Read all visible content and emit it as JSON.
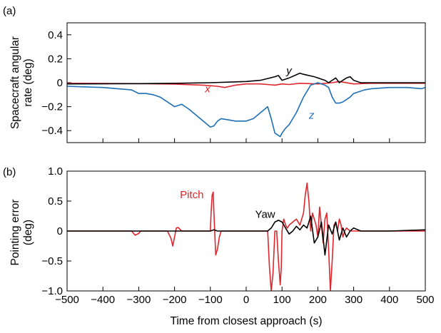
{
  "figure": {
    "x_axis_label": "Time from closest approach (s)"
  },
  "chart_data": [
    {
      "panel_label": "(a)",
      "type": "line",
      "ylabel": "Spacecraft angular rate (deg)",
      "ylabel_lines": [
        "Spacecraft angular",
        "rate (deg)"
      ],
      "xlim": [
        -500,
        500
      ],
      "ylim": [
        -0.5,
        0.5
      ],
      "yticks": [
        "0.4",
        "0.2",
        "0",
        "−0.2",
        "−0.4"
      ],
      "ytick_values": [
        0.4,
        0.2,
        0,
        -0.2,
        -0.4
      ],
      "grid": false,
      "series": [
        {
          "name": "x",
          "color": "#e0262c",
          "italic": true,
          "x": [
            -500,
            -300,
            -200,
            -120,
            -80,
            -60,
            -30,
            0,
            40,
            80,
            100,
            120,
            150,
            200,
            240,
            260,
            300,
            350,
            400,
            500
          ],
          "y": [
            -0.005,
            -0.008,
            -0.012,
            -0.02,
            -0.03,
            -0.04,
            -0.02,
            -0.01,
            -0.01,
            -0.02,
            -0.01,
            -0.015,
            -0.005,
            -0.01,
            0.0,
            0.01,
            -0.01,
            -0.005,
            -0.005,
            -0.005
          ]
        },
        {
          "name": "y",
          "color": "#000000",
          "italic": true,
          "x": [
            -500,
            -300,
            -200,
            -100,
            0,
            40,
            80,
            90,
            100,
            120,
            150,
            160,
            190,
            200,
            210,
            220,
            230,
            240,
            250,
            260,
            270,
            280,
            290,
            300,
            320,
            350,
            500
          ],
          "y": [
            -0.01,
            -0.008,
            -0.005,
            0.0,
            0.01,
            0.02,
            0.05,
            0.06,
            0.02,
            0.04,
            0.08,
            0.07,
            0.05,
            0.04,
            0.03,
            0.02,
            0.0,
            0.02,
            0.04,
            0.0,
            0.02,
            0.04,
            0.05,
            0.02,
            0.0,
            0.0,
            0.0
          ]
        },
        {
          "name": "z",
          "color": "#1f6fb5",
          "italic": true,
          "x": [
            -500,
            -400,
            -320,
            -300,
            -280,
            -260,
            -240,
            -220,
            -200,
            -180,
            -160,
            -140,
            -120,
            -100,
            -90,
            -80,
            -70,
            -50,
            -30,
            0,
            20,
            40,
            60,
            70,
            80,
            90,
            95,
            100,
            110,
            120,
            140,
            160,
            180,
            200,
            220,
            230,
            240,
            250,
            260,
            270,
            290,
            300,
            330,
            350,
            400,
            450,
            490,
            500
          ],
          "y": [
            -0.03,
            -0.04,
            -0.06,
            -0.09,
            -0.09,
            -0.1,
            -0.12,
            -0.16,
            -0.2,
            -0.18,
            -0.22,
            -0.27,
            -0.32,
            -0.37,
            -0.36,
            -0.32,
            -0.3,
            -0.31,
            -0.32,
            -0.32,
            -0.3,
            -0.25,
            -0.2,
            -0.3,
            -0.42,
            -0.44,
            -0.45,
            -0.42,
            -0.38,
            -0.35,
            -0.25,
            -0.12,
            -0.02,
            0.0,
            -0.02,
            -0.04,
            -0.12,
            -0.17,
            -0.17,
            -0.16,
            -0.12,
            -0.09,
            -0.06,
            -0.05,
            -0.04,
            -0.04,
            -0.05,
            -0.04
          ]
        }
      ],
      "labels": [
        {
          "text": "y",
          "x": 112,
          "y": 0.07
        },
        {
          "text": "x",
          "x": -115,
          "y": -0.08
        },
        {
          "text": "z",
          "x": 175,
          "y": -0.3
        }
      ]
    },
    {
      "panel_label": "(b)",
      "type": "line",
      "ylabel": "Pointing error (deg)",
      "ylabel_lines": [
        "Pointing error",
        "(deg)"
      ],
      "xlim": [
        -500,
        500
      ],
      "ylim": [
        -1.0,
        1.0
      ],
      "xticks": [
        "−500",
        "−400",
        "−300",
        "−200",
        "−100",
        "0",
        "100",
        "200",
        "300",
        "400",
        "500"
      ],
      "xtick_values": [
        -500,
        -400,
        -300,
        -200,
        -100,
        0,
        100,
        200,
        300,
        400,
        500
      ],
      "yticks": [
        "1.0",
        "0.5",
        "0",
        "−0.5",
        "−1.0"
      ],
      "ytick_values": [
        1.0,
        0.5,
        0,
        -0.5,
        -1.0
      ],
      "grid": false,
      "series": [
        {
          "name": "Pitch",
          "color": "#e0262c",
          "italic": false,
          "x": [
            -500,
            -320,
            -310,
            -300,
            -295,
            -290,
            -220,
            -210,
            -205,
            -200,
            -195,
            -190,
            -180,
            -170,
            -110,
            -100,
            -98,
            -95,
            -92,
            -90,
            -85,
            -80,
            -75,
            -70,
            -60,
            0,
            60,
            65,
            70,
            75,
            80,
            85,
            90,
            95,
            98,
            100,
            105,
            110,
            115,
            120,
            130,
            140,
            150,
            160,
            165,
            170,
            175,
            180,
            185,
            190,
            195,
            200,
            205,
            210,
            215,
            220,
            225,
            230,
            235,
            240,
            245,
            250,
            255,
            260,
            265,
            270,
            275,
            280,
            290,
            300,
            320,
            340,
            500
          ],
          "y": [
            0.0,
            0.0,
            -0.07,
            -0.04,
            0.0,
            0.0,
            0.0,
            -0.12,
            -0.25,
            -0.1,
            0.05,
            0.06,
            0.0,
            0.0,
            0.0,
            0.0,
            0.3,
            0.6,
            0.65,
            0.3,
            -0.4,
            -0.3,
            -0.1,
            0.0,
            0.0,
            0.0,
            0.0,
            -0.6,
            -1.0,
            -0.7,
            0.0,
            0.0,
            -0.5,
            -0.9,
            -0.6,
            0.0,
            0.2,
            0.1,
            0.05,
            0.1,
            0.15,
            0.2,
            0.1,
            0.3,
            0.6,
            0.8,
            0.5,
            0.0,
            0.3,
            0.2,
            0.1,
            -0.1,
            0.4,
            0.1,
            -0.2,
            0.2,
            0.3,
            -0.3,
            -1.0,
            -0.5,
            0.1,
            0.15,
            0.0,
            0.2,
            0.1,
            -0.1,
            0.0,
            0.05,
            0.0,
            0.0,
            0.0,
            0.0,
            0.0
          ]
        },
        {
          "name": "Yaw",
          "color": "#000000",
          "italic": false,
          "x": [
            -500,
            -100,
            -90,
            -80,
            0,
            60,
            70,
            80,
            90,
            100,
            110,
            120,
            130,
            140,
            150,
            160,
            170,
            180,
            190,
            200,
            210,
            220,
            230,
            240,
            250,
            260,
            270,
            280,
            290,
            300,
            320,
            340,
            400,
            500
          ],
          "y": [
            0.0,
            0.0,
            0.02,
            0.0,
            0.0,
            0.0,
            0.05,
            0.15,
            0.18,
            0.15,
            0.05,
            -0.05,
            0.0,
            0.08,
            0.02,
            0.1,
            0.05,
            0.25,
            -0.2,
            -0.1,
            0.15,
            -0.4,
            0.1,
            -0.05,
            0.15,
            -0.15,
            0.05,
            -0.1,
            0.0,
            0.05,
            0.0,
            0.0,
            0.0,
            0.02
          ]
        }
      ],
      "labels": [
        {
          "text": "Pitch",
          "x": -185,
          "y": 0.55
        },
        {
          "text": "Yaw",
          "x": 25,
          "y": 0.22
        }
      ]
    }
  ]
}
